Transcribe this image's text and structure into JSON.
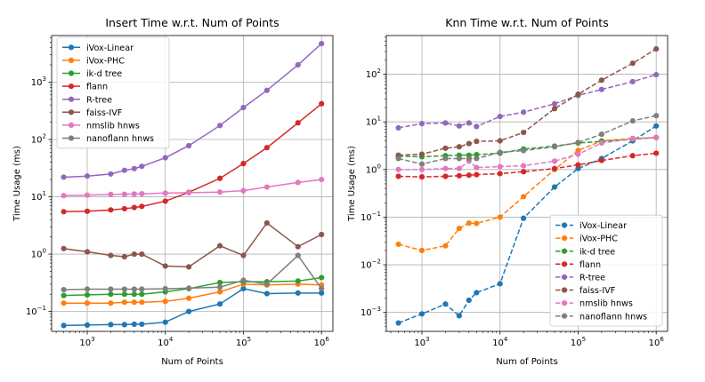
{
  "chart_data": [
    {
      "type": "line",
      "title": "Insert Time w.r.t. Num of Points",
      "xlabel": "Num of Points",
      "ylabel": "Time Usage (ms)",
      "xscale": "log",
      "yscale": "log",
      "xlim": [
        350,
        1400000
      ],
      "ylim": [
        0.045,
        6500
      ],
      "grid": true,
      "legend_loc": "top-left",
      "x": [
        500,
        1000,
        2000,
        3000,
        4000,
        5000,
        10000,
        20000,
        50000,
        100000,
        200000,
        500000,
        1000000
      ],
      "xticks": [
        {
          "value": 1000,
          "base": "10",
          "exp": "3"
        },
        {
          "value": 10000,
          "base": "10",
          "exp": "4"
        },
        {
          "value": 100000,
          "base": "10",
          "exp": "5"
        },
        {
          "value": 1000000,
          "base": "10",
          "exp": "6"
        }
      ],
      "yticks": [
        {
          "value": 0.1,
          "base": "10",
          "exp": "−1"
        },
        {
          "value": 1,
          "base": "10",
          "exp": "0"
        },
        {
          "value": 10,
          "base": "10",
          "exp": "1"
        },
        {
          "value": 100,
          "base": "10",
          "exp": "2"
        },
        {
          "value": 1000,
          "base": "10",
          "exp": "3"
        }
      ],
      "series": [
        {
          "name": "iVox-Linear",
          "color": "#1f77b4",
          "dashed": false,
          "values": [
            0.057,
            0.058,
            0.059,
            0.059,
            0.06,
            0.06,
            0.065,
            0.1,
            0.135,
            0.25,
            0.205,
            0.21,
            0.21
          ]
        },
        {
          "name": "iVox-PHC",
          "color": "#ff7f0e",
          "dashed": false,
          "values": [
            0.14,
            0.14,
            0.14,
            0.145,
            0.145,
            0.145,
            0.15,
            0.17,
            0.22,
            0.3,
            0.29,
            0.3,
            0.29
          ]
        },
        {
          "name": "ik-d tree",
          "color": "#2ca02c",
          "dashed": false,
          "values": [
            0.19,
            0.195,
            0.2,
            0.2,
            0.2,
            0.2,
            0.22,
            0.25,
            0.32,
            0.33,
            0.33,
            0.34,
            0.39
          ]
        },
        {
          "name": "flann",
          "color": "#d62728",
          "dashed": false,
          "values": [
            5.5,
            5.6,
            5.9,
            6.2,
            6.5,
            6.8,
            8.4,
            12,
            21,
            38,
            72,
            195,
            420
          ]
        },
        {
          "name": "R-tree",
          "color": "#9467bd",
          "dashed": false,
          "values": [
            22,
            23,
            25,
            29,
            31,
            34,
            48,
            78,
            175,
            360,
            720,
            2000,
            4700
          ]
        },
        {
          "name": "faiss-IVF",
          "color": "#8c564b",
          "dashed": false,
          "values": [
            1.25,
            1.1,
            0.95,
            0.9,
            1.0,
            1.0,
            0.62,
            0.6,
            1.4,
            0.95,
            3.5,
            1.35,
            2.2
          ]
        },
        {
          "name": "nmslib hnws",
          "color": "#e377c2",
          "dashed": false,
          "values": [
            10.5,
            10.7,
            11,
            11.1,
            11.2,
            11.3,
            11.6,
            11.8,
            12.1,
            12.8,
            14.8,
            17.8,
            20
          ]
        },
        {
          "name": "nanoflann hnws",
          "color": "#7f7f7f",
          "dashed": false,
          "values": [
            0.24,
            0.245,
            0.245,
            0.245,
            0.245,
            0.245,
            0.25,
            0.255,
            0.265,
            0.35,
            0.3,
            0.95,
            0.25
          ]
        }
      ]
    },
    {
      "type": "line",
      "title": "Knn Time w.r.t. Num of Points",
      "xlabel": "Num of Points",
      "ylabel": "Time Usage (ms)",
      "xscale": "log",
      "yscale": "log",
      "xlim": [
        350,
        1400000
      ],
      "ylim": [
        0.0004,
        650
      ],
      "grid": true,
      "legend_loc": "bottom-right",
      "x": [
        500,
        1000,
        2000,
        3000,
        4000,
        5000,
        10000,
        20000,
        50000,
        100000,
        200000,
        500000,
        1000000
      ],
      "xticks": [
        {
          "value": 1000,
          "base": "10",
          "exp": "3"
        },
        {
          "value": 10000,
          "base": "10",
          "exp": "4"
        },
        {
          "value": 100000,
          "base": "10",
          "exp": "5"
        },
        {
          "value": 1000000,
          "base": "10",
          "exp": "6"
        }
      ],
      "yticks": [
        {
          "value": 0.001,
          "base": "10",
          "exp": "−3"
        },
        {
          "value": 0.01,
          "base": "10",
          "exp": "−2"
        },
        {
          "value": 0.1,
          "base": "10",
          "exp": "−1"
        },
        {
          "value": 1,
          "base": "10",
          "exp": "0"
        },
        {
          "value": 10,
          "base": "10",
          "exp": "1"
        },
        {
          "value": 100,
          "base": "10",
          "exp": "2"
        }
      ],
      "series": [
        {
          "name": "iVox-Linear",
          "color": "#1f77b4",
          "dashed": true,
          "values": [
            0.0006,
            0.00093,
            0.0015,
            0.00085,
            0.0018,
            0.0026,
            0.004,
            0.095,
            0.43,
            1.05,
            1.7,
            4.0,
            8.2
          ]
        },
        {
          "name": "iVox-PHC",
          "color": "#ff7f0e",
          "dashed": true,
          "values": [
            0.027,
            0.02,
            0.025,
            0.058,
            0.075,
            0.074,
            0.1,
            0.27,
            1.0,
            2.5,
            4.0,
            4.5,
            4.7
          ]
        },
        {
          "name": "ik-d tree",
          "color": "#2ca02c",
          "dashed": true,
          "values": [
            1.9,
            1.85,
            1.95,
            2.0,
            2.0,
            2.05,
            2.2,
            2.7,
            3.1,
            3.6,
            3.9,
            4.3,
            4.7
          ]
        },
        {
          "name": "flann",
          "color": "#d62728",
          "dashed": true,
          "values": [
            0.72,
            0.7,
            0.72,
            0.74,
            0.76,
            0.78,
            0.82,
            0.9,
            1.05,
            1.25,
            1.55,
            1.95,
            2.2
          ]
        },
        {
          "name": "R-tree",
          "color": "#9467bd",
          "dashed": true,
          "values": [
            7.5,
            9.2,
            9.5,
            8.2,
            9.5,
            8.0,
            13,
            16,
            24,
            36,
            48,
            70,
            98
          ]
        },
        {
          "name": "faiss-IVF",
          "color": "#8c564b",
          "dashed": true,
          "values": [
            2.0,
            2.1,
            2.8,
            3.0,
            3.5,
            3.9,
            4.0,
            6.0,
            19,
            38,
            75,
            170,
            340
          ]
        },
        {
          "name": "nmslib hnws",
          "color": "#e377c2",
          "dashed": true,
          "values": [
            1.0,
            1.0,
            1.05,
            1.05,
            1.5,
            1.1,
            1.15,
            1.2,
            1.5,
            2.1,
            3.6,
            4.4,
            4.7
          ]
        },
        {
          "name": "nanoflann hnws",
          "color": "#7f7f7f",
          "dashed": true,
          "values": [
            1.7,
            1.3,
            1.7,
            1.7,
            1.7,
            1.7,
            2.3,
            2.5,
            3.0,
            3.7,
            5.5,
            10.5,
            13.5
          ]
        }
      ]
    }
  ]
}
